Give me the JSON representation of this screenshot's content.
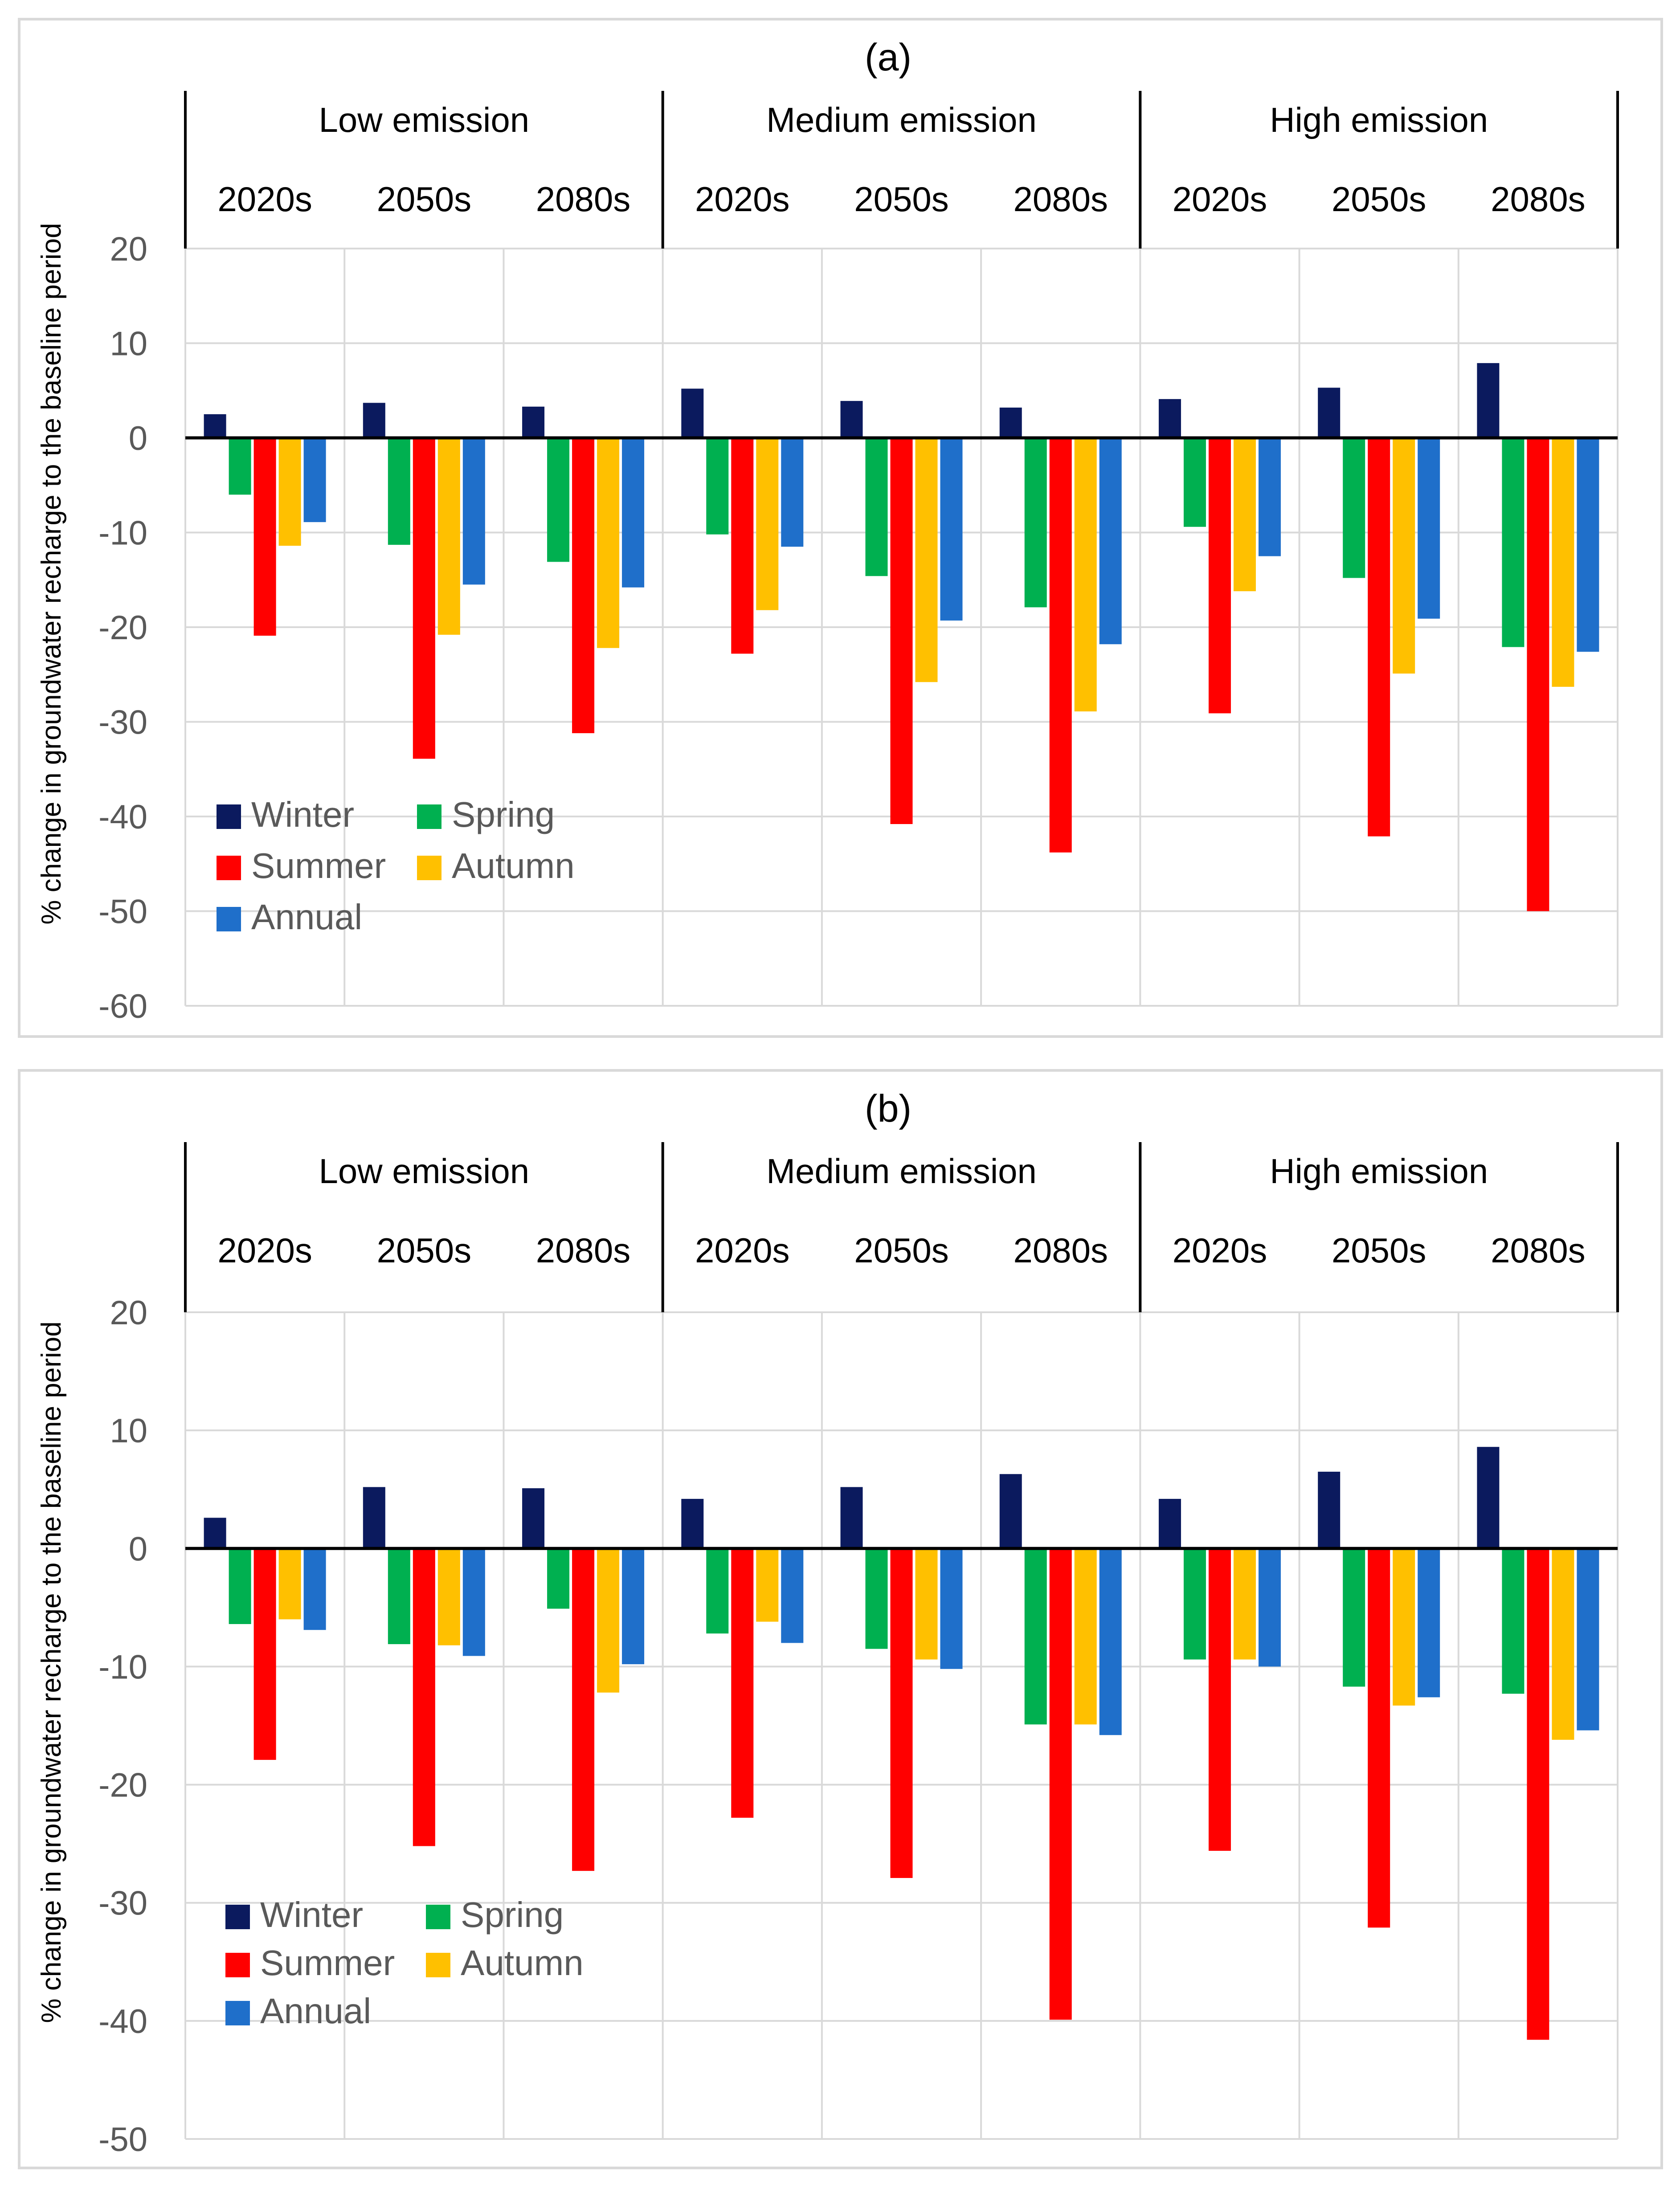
{
  "chart_data": [
    {
      "panel": "a",
      "type": "bar",
      "title": "(a)",
      "ylabel": "% change in groundwater recharge to the baseline period",
      "ylim": [
        -60,
        20
      ],
      "yticks": [
        20,
        10,
        0,
        -10,
        -20,
        -30,
        -40,
        -50,
        -60
      ],
      "grid": true,
      "legend_position": "bottom-left",
      "groups": [
        "Low emission",
        "Medium emission",
        "High emission"
      ],
      "categories": [
        "2020s",
        "2050s",
        "2080s",
        "2020s",
        "2050s",
        "2080s",
        "2020s",
        "2050s",
        "2080s"
      ],
      "series": [
        {
          "name": "Winter",
          "color": "#0b1a5e",
          "values": [
            2.5,
            3.7,
            3.3,
            5.2,
            3.9,
            3.2,
            4.1,
            5.3,
            7.9
          ]
        },
        {
          "name": "Spring",
          "color": "#00b050",
          "values": [
            -6.0,
            -11.3,
            -13.1,
            -10.2,
            -14.6,
            -17.9,
            -9.4,
            -14.8,
            -22.1
          ]
        },
        {
          "name": "Summer",
          "color": "#ff0000",
          "values": [
            -20.9,
            -33.9,
            -31.2,
            -22.8,
            -40.8,
            -43.8,
            -29.1,
            -42.1,
            -50.0
          ]
        },
        {
          "name": "Autumn",
          "color": "#ffc000",
          "values": [
            -11.4,
            -20.8,
            -22.2,
            -18.2,
            -25.8,
            -28.9,
            -16.2,
            -24.9,
            -26.3
          ]
        },
        {
          "name": "Annual",
          "color": "#1f6fca",
          "values": [
            -8.9,
            -15.5,
            -15.8,
            -11.5,
            -19.3,
            -21.8,
            -12.5,
            -19.1,
            -22.6
          ]
        }
      ]
    },
    {
      "panel": "b",
      "type": "bar",
      "title": "(b)",
      "ylabel": "% change in groundwater recharge to the baseline period",
      "ylim": [
        -50,
        20
      ],
      "yticks": [
        20,
        10,
        0,
        -10,
        -20,
        -30,
        -40,
        -50
      ],
      "grid": true,
      "legend_position": "bottom-left",
      "groups": [
        "Low emission",
        "Medium emission",
        "High emission"
      ],
      "categories": [
        "2020s",
        "2050s",
        "2080s",
        "2020s",
        "2050s",
        "2080s",
        "2020s",
        "2050s",
        "2080s"
      ],
      "series": [
        {
          "name": "Winter",
          "color": "#0b1a5e",
          "values": [
            2.6,
            5.2,
            5.1,
            4.2,
            5.2,
            6.3,
            4.2,
            6.5,
            8.6
          ]
        },
        {
          "name": "Spring",
          "color": "#00b050",
          "values": [
            -6.4,
            -8.1,
            -5.1,
            -7.2,
            -8.5,
            -14.9,
            -9.4,
            -11.7,
            -12.3
          ]
        },
        {
          "name": "Summer",
          "color": "#ff0000",
          "values": [
            -17.9,
            -25.2,
            -27.3,
            -22.8,
            -27.9,
            -39.9,
            -25.6,
            -32.1,
            -41.6
          ]
        },
        {
          "name": "Autumn",
          "color": "#ffc000",
          "values": [
            -6.0,
            -8.2,
            -12.2,
            -6.2,
            -9.4,
            -14.9,
            -9.4,
            -13.3,
            -16.2
          ]
        },
        {
          "name": "Annual",
          "color": "#1f6fca",
          "values": [
            -6.9,
            -9.1,
            -9.8,
            -8.0,
            -10.2,
            -15.8,
            -10.0,
            -12.6,
            -15.4
          ]
        }
      ]
    }
  ]
}
